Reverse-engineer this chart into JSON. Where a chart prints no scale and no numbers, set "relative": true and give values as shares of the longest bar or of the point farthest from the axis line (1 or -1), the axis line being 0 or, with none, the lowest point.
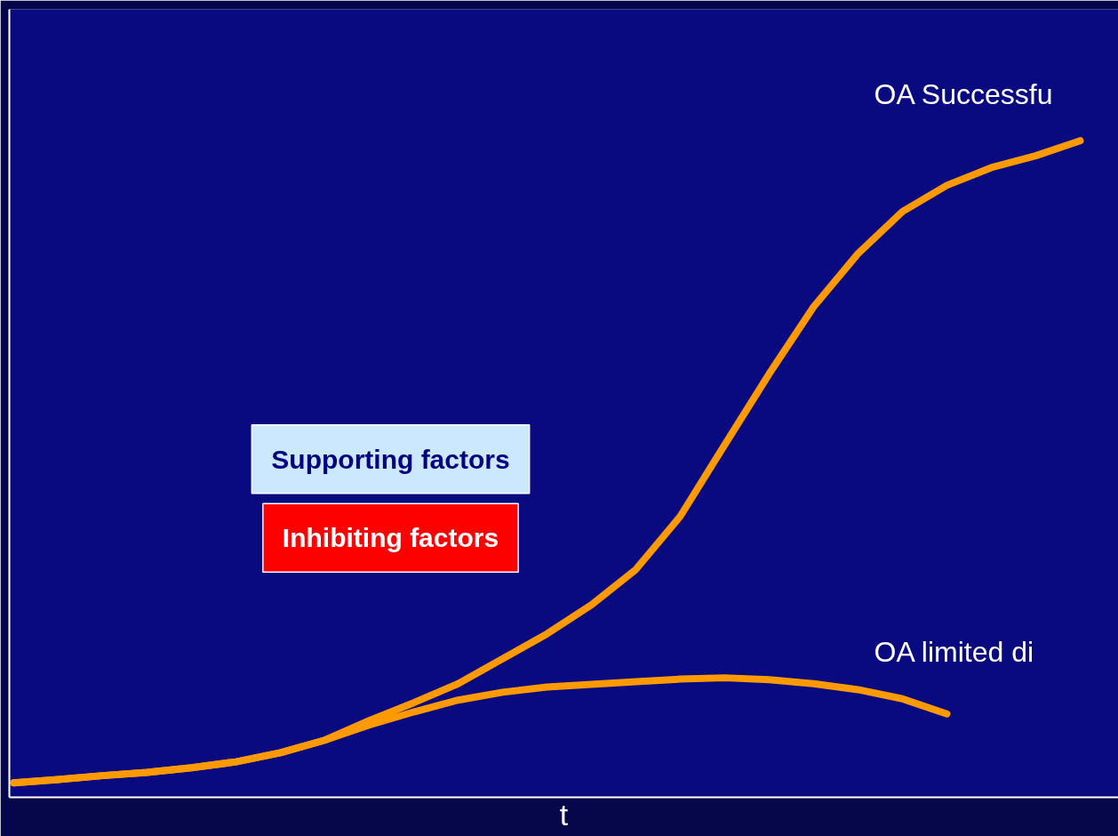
{
  "chart_data": {
    "type": "line",
    "relative": true,
    "xlabel": "t",
    "categories": [
      null,
      null,
      null,
      null,
      null,
      null,
      null,
      null,
      null,
      null,
      null,
      null,
      null,
      null,
      null,
      null,
      null,
      null,
      null,
      null,
      null,
      null,
      null,
      null,
      null
    ],
    "series": [
      {
        "color": "#ff9900",
        "values": [
          0.022,
          0.027,
          0.033,
          0.038,
          0.045,
          0.054,
          0.068,
          0.087,
          0.117,
          0.144,
          0.173,
          0.211,
          0.249,
          0.293,
          0.347,
          0.428,
          0.537,
          0.645,
          0.747,
          0.828,
          0.892,
          0.932,
          0.959,
          0.977,
          1.0
        ]
      },
      {
        "color": "#ff9900",
        "values": [
          0.022,
          0.027,
          0.033,
          0.038,
          0.045,
          0.054,
          0.068,
          0.087,
          0.11,
          0.13,
          0.148,
          0.16,
          0.168,
          0.172,
          0.176,
          0.18,
          0.182,
          0.179,
          0.173,
          0.164,
          0.15,
          0.127,
          null,
          null,
          null
        ]
      }
    ],
    "annotations": [
      "OA Successfu",
      "OA limited di",
      "Supporting factors",
      "Inhibiting factors"
    ]
  }
}
